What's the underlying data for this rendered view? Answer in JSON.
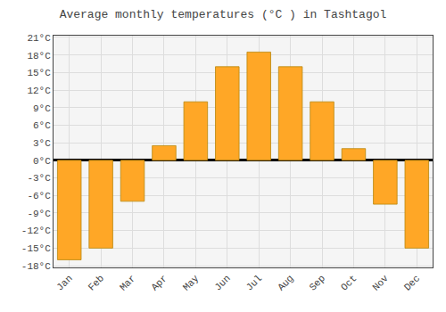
{
  "chart_data": {
    "type": "bar",
    "title": "Average monthly temperatures (°C ) in Tashtagol",
    "categories": [
      "Jan",
      "Feb",
      "Mar",
      "Apr",
      "May",
      "Jun",
      "Jul",
      "Aug",
      "Sep",
      "Oct",
      "Nov",
      "Dec"
    ],
    "values": [
      -17,
      -15,
      -7,
      2.5,
      10,
      16,
      18.5,
      16,
      10,
      2,
      -7.5,
      -15
    ],
    "color": "#FFA726",
    "ylim": [
      -18.3,
      21.3
    ],
    "yticks": [
      {
        "value": -18,
        "label": "-18°C"
      },
      {
        "value": -15,
        "label": "-15°C"
      },
      {
        "value": -12,
        "label": "-12°C"
      },
      {
        "value": -9,
        "label": "-9°C"
      },
      {
        "value": -6,
        "label": "-6°C"
      },
      {
        "value": -3,
        "label": "-3°C"
      },
      {
        "value": 0,
        "label": "0°C"
      },
      {
        "value": 3,
        "label": "3°C"
      },
      {
        "value": 6,
        "label": "6°C"
      },
      {
        "value": 9,
        "label": "9°C"
      },
      {
        "value": 12,
        "label": "12°C"
      },
      {
        "value": 15,
        "label": "15°C"
      },
      {
        "value": 18,
        "label": "18°C"
      },
      {
        "value": 21,
        "label": "21°C"
      }
    ],
    "grid": true
  }
}
